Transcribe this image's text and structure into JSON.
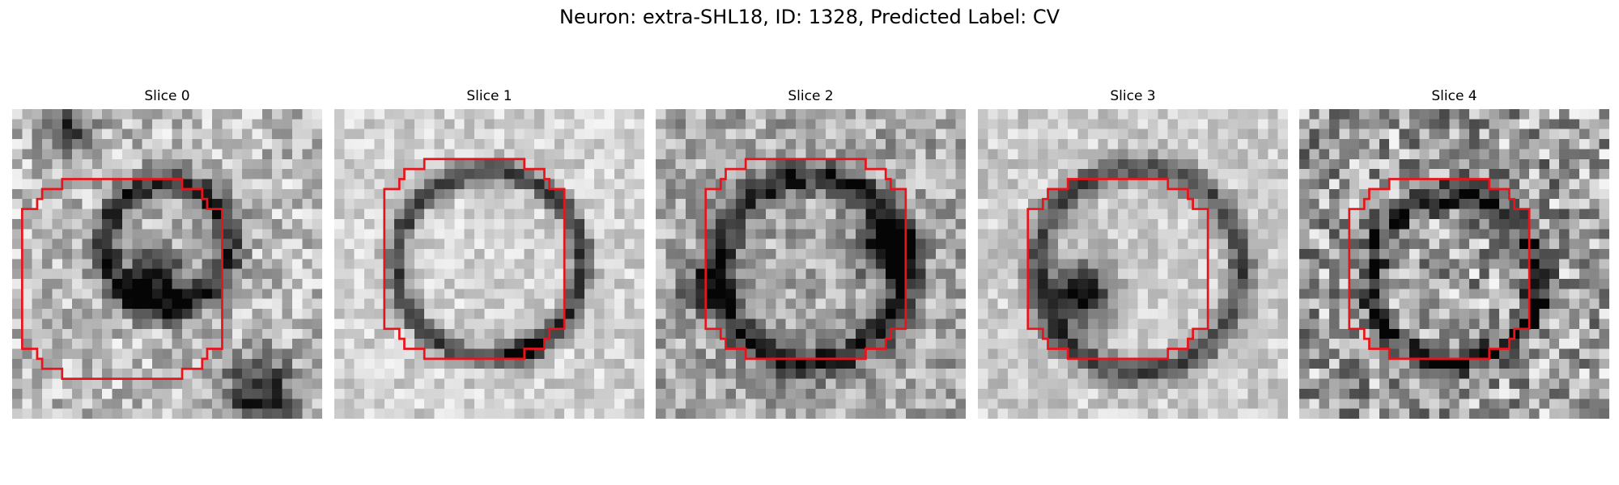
{
  "figure": {
    "title": "Neuron: extra-SHL18, ID: 1328, Predicted Label: CV"
  },
  "panels": [
    {
      "title": "Slice 0"
    },
    {
      "title": "Slice 1"
    },
    {
      "title": "Slice 2"
    },
    {
      "title": "Slice 3"
    },
    {
      "title": "Slice 4"
    }
  ],
  "colors": {
    "outline": "#e8141c",
    "colormap": "grayscale"
  }
}
